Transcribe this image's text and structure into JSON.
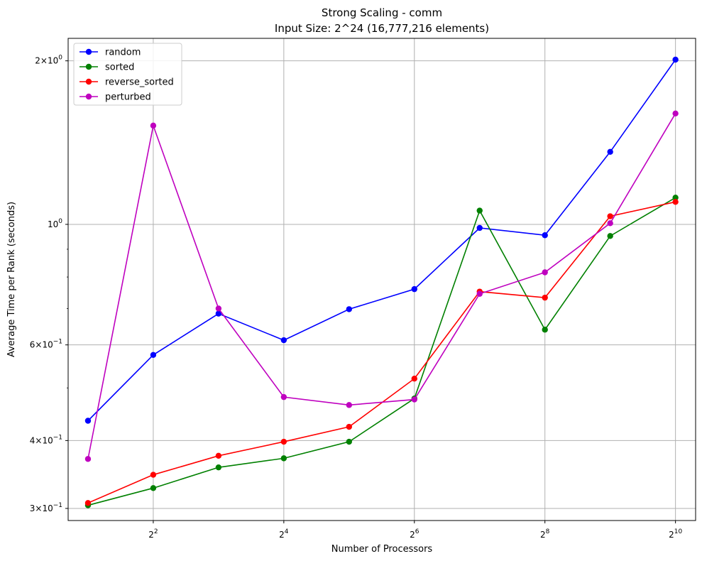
{
  "chart_data": {
    "type": "line",
    "title": "Strong Scaling - comm",
    "subtitle": "Input Size: 2^24 (16,777,216 elements)",
    "xlabel": "Number of Processors",
    "ylabel": "Average Time per Rank (seconds)",
    "x_scale": "log2",
    "y_scale": "log10",
    "x": [
      2,
      4,
      8,
      16,
      32,
      64,
      128,
      256,
      512,
      1024
    ],
    "xlim": [
      1.62,
      1268
    ],
    "ylim": [
      0.285,
      2.2
    ],
    "grid": true,
    "legend_position": "top-left",
    "x_ticks": [
      {
        "value": 4,
        "base": "2",
        "exp": "2"
      },
      {
        "value": 16,
        "base": "2",
        "exp": "4"
      },
      {
        "value": 64,
        "base": "2",
        "exp": "6"
      },
      {
        "value": 256,
        "base": "2",
        "exp": "8"
      },
      {
        "value": 1024,
        "base": "2",
        "exp": "10"
      }
    ],
    "y_ticks": [
      {
        "value": 2,
        "mantissa": "2",
        "sep": "×",
        "base": "10",
        "exp": "0"
      },
      {
        "value": 1,
        "mantissa": "",
        "sep": "",
        "base": "10",
        "exp": "0"
      },
      {
        "value": 0.6,
        "mantissa": "6",
        "sep": "×",
        "base": "10",
        "exp": "−1"
      },
      {
        "value": 0.4,
        "mantissa": "4",
        "sep": "×",
        "base": "10",
        "exp": "−1"
      },
      {
        "value": 0.3,
        "mantissa": "3",
        "sep": "×",
        "base": "10",
        "exp": "−1"
      }
    ],
    "y_minor_ticks": [
      0.5,
      0.7,
      0.8,
      0.9
    ],
    "series": [
      {
        "name": "random",
        "color": "#0000ff",
        "values": [
          0.435,
          0.575,
          0.685,
          0.612,
          0.698,
          0.76,
          0.985,
          0.955,
          1.36,
          2.01
        ]
      },
      {
        "name": "sorted",
        "color": "#008000",
        "values": [
          0.304,
          0.327,
          0.357,
          0.371,
          0.398,
          0.478,
          1.06,
          0.64,
          0.952,
          1.12
        ]
      },
      {
        "name": "reverse_sorted",
        "color": "#ff0000",
        "values": [
          0.307,
          0.346,
          0.375,
          0.398,
          0.424,
          0.52,
          0.752,
          0.733,
          1.035,
          1.1
        ]
      },
      {
        "name": "perturbed",
        "color": "#bf00bf",
        "values": [
          0.37,
          1.52,
          0.7,
          0.481,
          0.465,
          0.476,
          0.745,
          0.816,
          1.005,
          1.6
        ]
      }
    ]
  }
}
